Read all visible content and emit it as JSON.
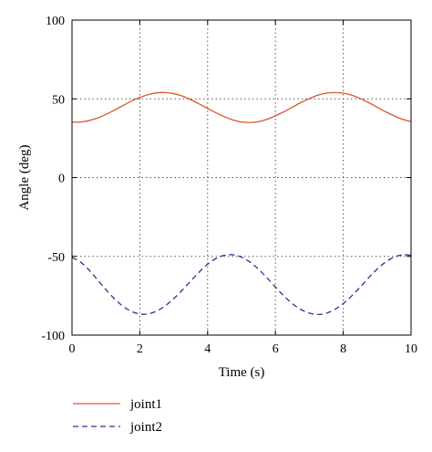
{
  "chart_data": {
    "type": "line",
    "xlabel": "Time (s)",
    "ylabel": "Angle (deg)",
    "xlim": [
      0,
      10
    ],
    "ylim": [
      -100,
      100
    ],
    "xticks": [
      "0",
      "2",
      "4",
      "6",
      "8",
      "10"
    ],
    "yticks": [
      "100",
      "50",
      "0",
      "-50",
      "-100"
    ],
    "grid": true,
    "legend_position": "bottom-left",
    "series": [
      {
        "name": "joint1",
        "color": "#d9572b",
        "dash": "solid",
        "x": [
          0,
          0.25,
          0.5,
          0.75,
          1,
          1.25,
          1.5,
          1.75,
          2,
          2.25,
          2.5,
          2.75,
          3,
          3.25,
          3.5,
          3.75,
          4,
          4.25,
          4.5,
          4.75,
          5,
          5.25,
          5.5,
          5.75,
          6,
          6.25,
          6.5,
          6.75,
          7,
          7.25,
          7.5,
          7.75,
          8,
          8.25,
          8.5,
          8.75,
          9,
          9.25,
          9.5,
          9.75,
          10
        ],
        "values": [
          35.2,
          35.3,
          36.2,
          37.8,
          40.1,
          42.8,
          45.7,
          48.5,
          50.9,
          52.7,
          53.8,
          54.0,
          53.3,
          51.8,
          49.5,
          46.8,
          43.9,
          41.1,
          38.6,
          36.6,
          35.3,
          35.0,
          35.5,
          37.0,
          39.2,
          41.8,
          44.7,
          47.6,
          50.2,
          52.3,
          53.6,
          54.0,
          53.6,
          52.3,
          50.2,
          47.6,
          44.7,
          41.8,
          39.2,
          37.0,
          35.5
        ]
      },
      {
        "name": "joint2",
        "color": "#2e318f",
        "dash": "dashed",
        "x": [
          0,
          0.25,
          0.5,
          0.75,
          1,
          1.25,
          1.5,
          1.75,
          2,
          2.25,
          2.5,
          2.75,
          3,
          3.25,
          3.5,
          3.75,
          4,
          4.25,
          4.5,
          4.75,
          5,
          5.25,
          5.5,
          5.75,
          6,
          6.25,
          6.5,
          6.75,
          7,
          7.25,
          7.5,
          7.75,
          8,
          8.25,
          8.5,
          8.75,
          9,
          9.25,
          9.5,
          9.75,
          10
        ],
        "values": [
          -50.7,
          -53.6,
          -58.6,
          -64.8,
          -71.1,
          -76.9,
          -81.6,
          -84.9,
          -86.6,
          -86.5,
          -84.7,
          -81.4,
          -76.9,
          -71.5,
          -65.7,
          -60.0,
          -55.0,
          -51.3,
          -49.3,
          -49.0,
          -50.5,
          -53.6,
          -58.1,
          -63.6,
          -69.5,
          -75.1,
          -80.0,
          -83.7,
          -86.0,
          -86.9,
          -86.1,
          -83.7,
          -80.0,
          -75.1,
          -69.5,
          -63.6,
          -58.1,
          -53.6,
          -50.5,
          -49.0,
          -49.3
        ]
      }
    ]
  }
}
